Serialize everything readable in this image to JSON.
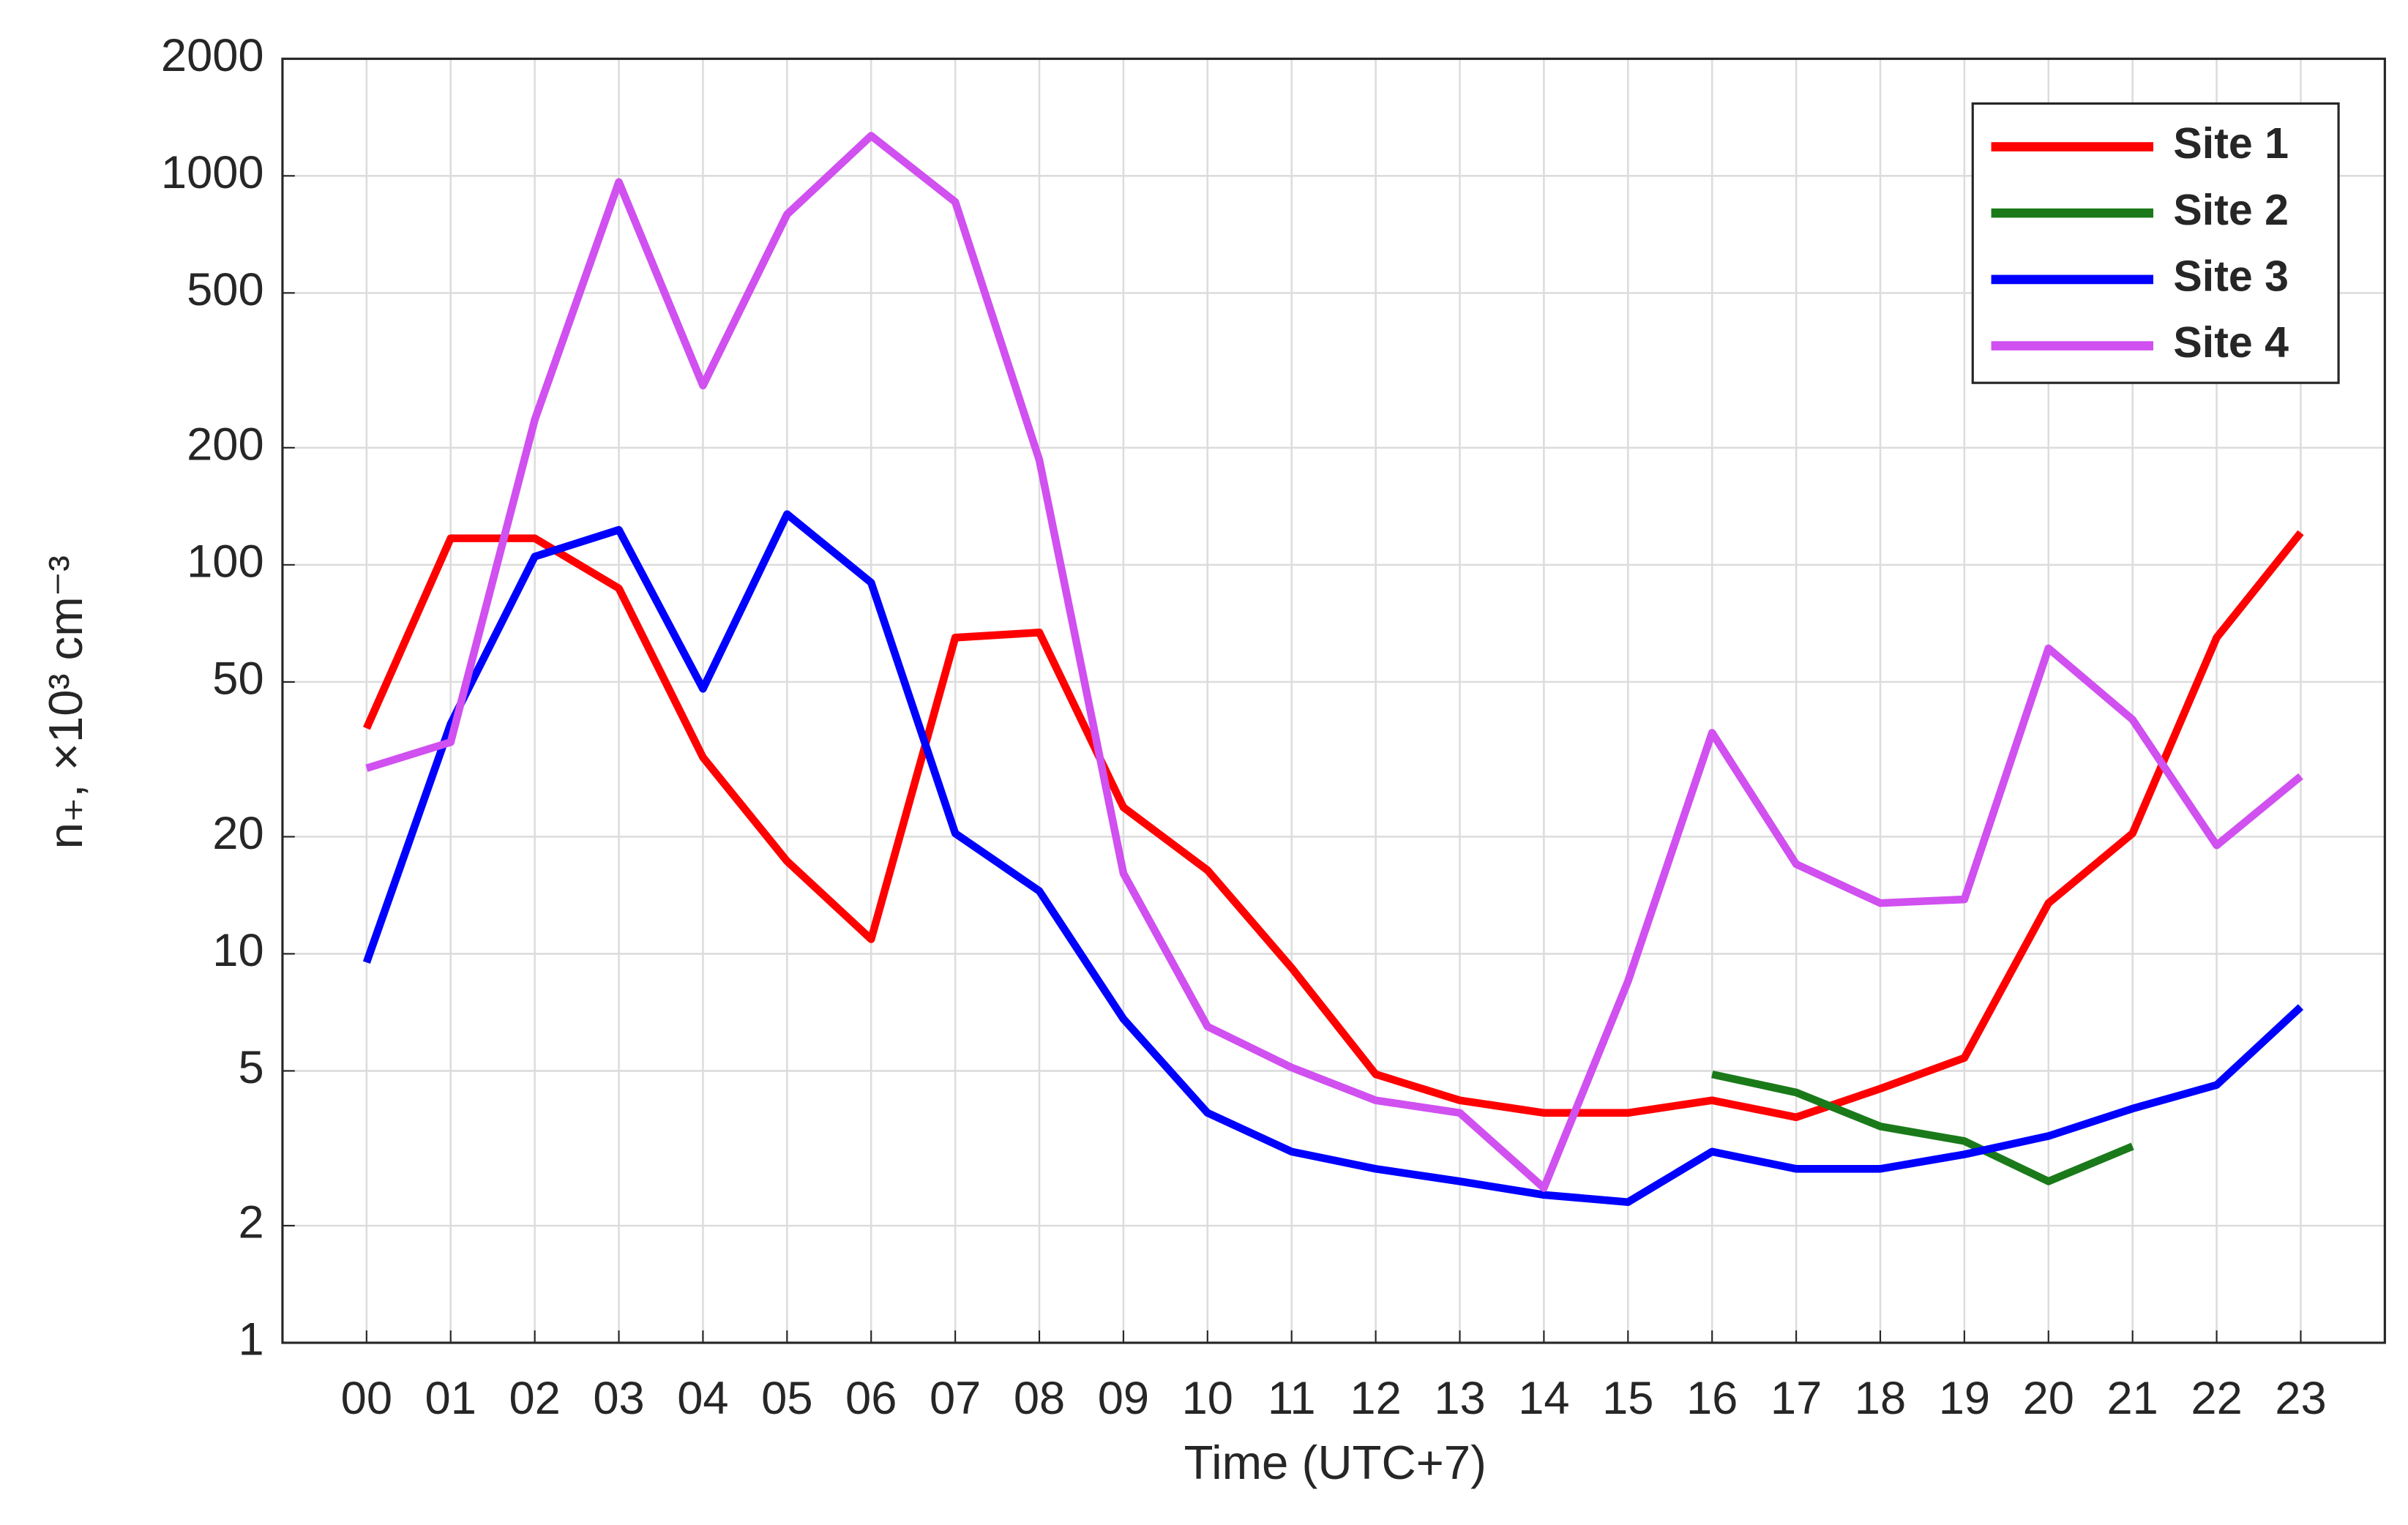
{
  "chart_data": {
    "type": "line",
    "x_label": "Time (UTC+7)",
    "y_label": "n₊, ×10³ cm⁻³",
    "categories": [
      "00",
      "01",
      "02",
      "03",
      "04",
      "05",
      "06",
      "07",
      "08",
      "09",
      "10",
      "11",
      "12",
      "13",
      "14",
      "15",
      "16",
      "17",
      "18",
      "19",
      "20",
      "21",
      "22",
      "23"
    ],
    "series": [
      {
        "name": "Site 1",
        "color": "#ff0000",
        "values": [
          38,
          117,
          117,
          87,
          32,
          17.3,
          10.9,
          65,
          67,
          23.8,
          16.4,
          9.2,
          4.9,
          4.2,
          3.9,
          3.9,
          4.2,
          3.8,
          4.5,
          5.4,
          13.5,
          20.4,
          65,
          121
        ]
      },
      {
        "name": "Site 2",
        "color": "#1a7a1a",
        "values": [
          null,
          null,
          null,
          null,
          null,
          null,
          null,
          null,
          null,
          null,
          null,
          null,
          null,
          null,
          null,
          null,
          4.9,
          4.4,
          3.6,
          3.3,
          2.6,
          3.2,
          null,
          null
        ]
      },
      {
        "name": "Site 3",
        "color": "#0000ff",
        "values": [
          9.5,
          39,
          105,
          123,
          48,
          135,
          90,
          20.4,
          14.5,
          6.8,
          3.9,
          3.1,
          2.8,
          2.6,
          2.4,
          2.3,
          3.1,
          2.8,
          2.8,
          3.05,
          3.4,
          4.0,
          4.6,
          7.3
        ]
      },
      {
        "name": "Site 4",
        "color": "#d050f0",
        "values": [
          30,
          35,
          236,
          964,
          289,
          796,
          1268,
          857,
          186,
          16.1,
          6.5,
          5.1,
          4.2,
          3.9,
          2.5,
          8.5,
          37,
          17,
          13.5,
          13.8,
          61,
          40,
          19,
          28.6
        ]
      }
    ],
    "ylim": [
      1,
      2000
    ],
    "yticks": [
      1,
      2,
      5,
      10,
      20,
      50,
      100,
      200,
      500,
      1000,
      2000
    ],
    "yscale": "log",
    "grid": true,
    "legend": "upper right"
  }
}
